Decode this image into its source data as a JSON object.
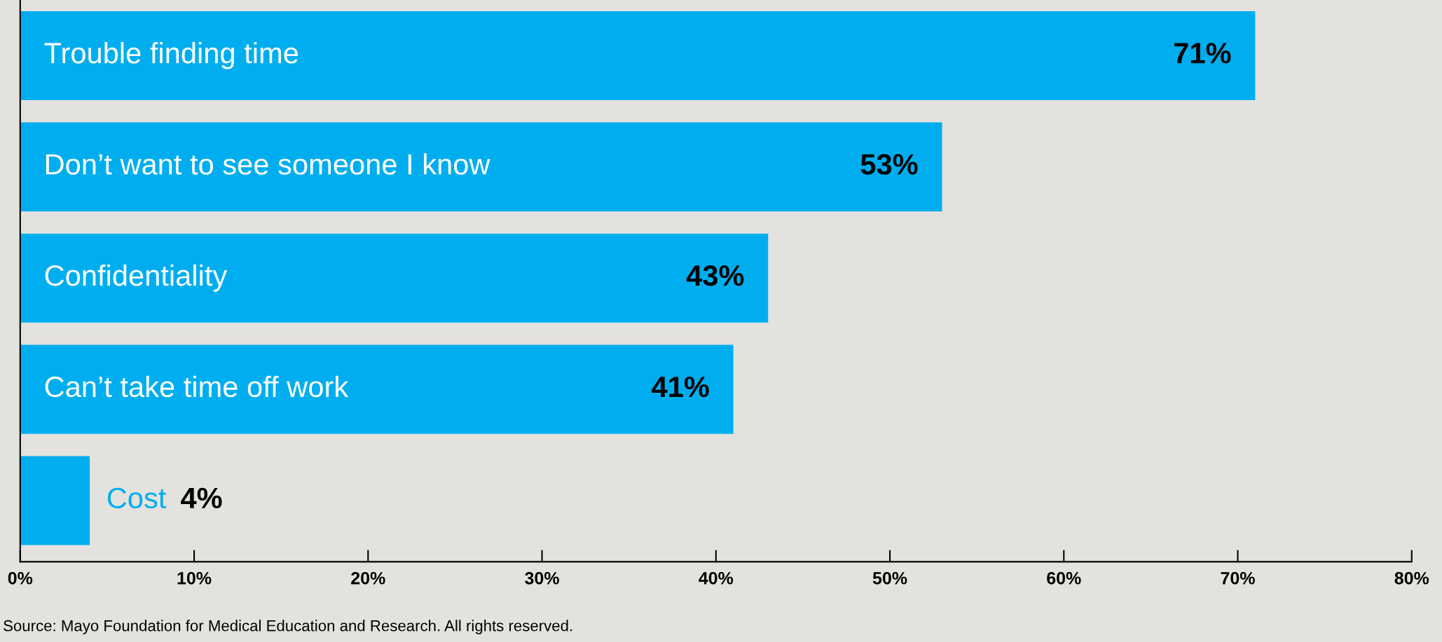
{
  "chart_data": {
    "type": "bar",
    "orientation": "horizontal",
    "categories": [
      "Trouble finding time",
      "Don’t want to see someone I know",
      "Confidentiality",
      "Can’t take time off work",
      "Cost"
    ],
    "values": [
      71,
      53,
      43,
      41,
      4
    ],
    "value_labels": [
      "71%",
      "53%",
      "43%",
      "41%",
      "4%"
    ],
    "color": "#00aeef",
    "xlim": [
      0,
      80
    ],
    "xticks": [
      {
        "value": 0,
        "label": "0%"
      },
      {
        "value": 10,
        "label": "10%"
      },
      {
        "value": 20,
        "label": "20%"
      },
      {
        "value": 30,
        "label": "30%"
      },
      {
        "value": 40,
        "label": "40%"
      },
      {
        "value": 50,
        "label": "50%"
      },
      {
        "value": 60,
        "label": "60%"
      },
      {
        "value": 70,
        "label": "70%"
      },
      {
        "value": 80,
        "label": "80%"
      }
    ],
    "grid": false,
    "legend": false,
    "annotations": [
      "Source: Mayo Foundation for Medical Education and Research. All rights reserved."
    ]
  }
}
